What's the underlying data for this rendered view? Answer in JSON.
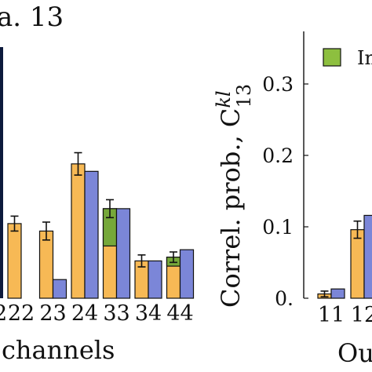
{
  "chart_data": [
    {
      "type": "bar",
      "panel_title": "a. 13",
      "xlabel": "channels",
      "categories": [
        "22",
        "23",
        "24",
        "33",
        "34",
        "44"
      ],
      "first_category_partial": "2",
      "series": [
        {
          "values": [
            0.1,
            0.09,
            0.18,
            0.12,
            0.05,
            0.055
          ],
          "errors": [
            0.01,
            0.012,
            0.015,
            0.012,
            0.008,
            0.007
          ]
        },
        {
          "values": [
            null,
            0.025,
            0.17,
            0.12,
            0.05,
            0.065
          ]
        }
      ],
      "green_segments": [
        null,
        null,
        null,
        0.05,
        null,
        0.012
      ],
      "colors": {
        "orange": "#f7b955",
        "blue": "#7b86d8",
        "green": "#76a83a",
        "edge": "#111111"
      }
    },
    {
      "type": "bar",
      "ylabel": "Correl. prob., C",
      "ylabel_sup": "kl",
      "ylabel_sub": "13",
      "xlabel_partial": "Ou",
      "yticks": [
        "0.",
        "0.1",
        "0.2",
        "0.3"
      ],
      "ylim": [
        0,
        0.37
      ],
      "categories": [
        "11",
        "12"
      ],
      "series": [
        {
          "values": [
            0.006,
            0.096
          ],
          "errors": [
            0.004,
            0.012
          ]
        },
        {
          "values": [
            0.013,
            0.116
          ]
        }
      ],
      "legend": {
        "label": "In",
        "color": "#8dbf3f"
      },
      "colors": {
        "orange": "#f7b955",
        "blue": "#7b86d8",
        "edge": "#111111"
      }
    }
  ]
}
